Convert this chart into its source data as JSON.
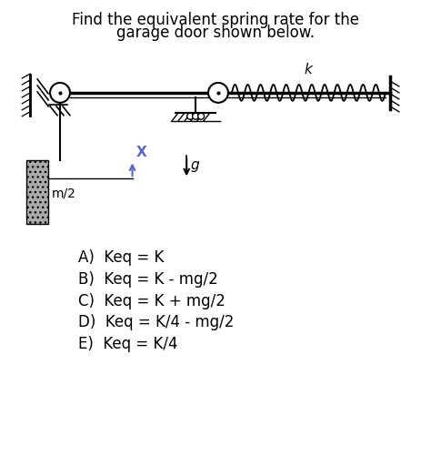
{
  "title_line1": "Find the equivalent spring rate for the",
  "title_line2": "garage door shown below.",
  "title_fontsize": 12,
  "options": [
    "A)  Keq = K",
    "B)  Keq = K - mg/2",
    "C)  Keq = K + mg/2",
    "D)  Keq = K/4 - mg/2",
    "E)  Keq = K/4"
  ],
  "options_fontsize": 12,
  "bg_color": "#ffffff",
  "fg_color": "#000000",
  "arrow_color": "#5566cc"
}
